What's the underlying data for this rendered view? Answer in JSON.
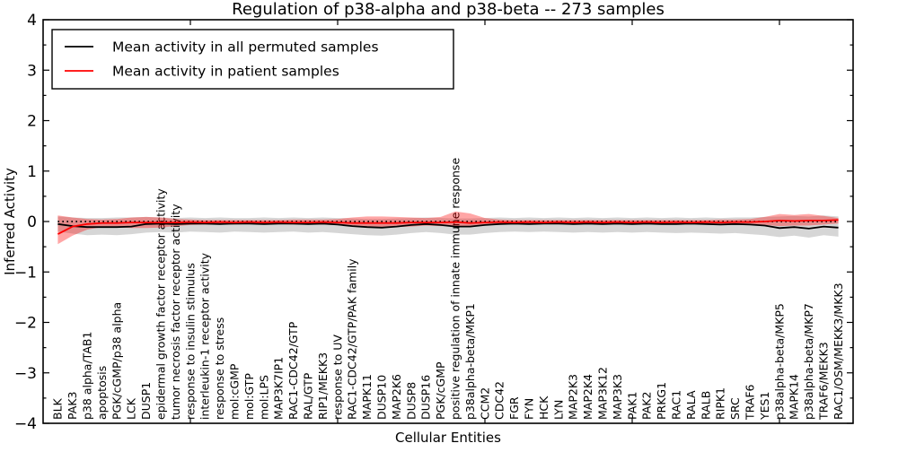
{
  "title": "Regulation of p38-alpha and p38-beta -- 273 samples",
  "colors": {
    "permuted_line": "#000000",
    "patient_line": "#ff0000",
    "permuted_band": "#000000",
    "patient_band": "#ff0000",
    "axis": "#000000",
    "background": "#ffffff"
  },
  "chart_data": {
    "type": "line",
    "title": "Regulation of p38-alpha and p38-beta -- 273 samples",
    "xlabel": "Cellular Entities",
    "ylabel": "Inferred Activity",
    "ylim": [
      -4,
      4
    ],
    "yticks": [
      -4,
      -3,
      -2,
      -1,
      0,
      1,
      2,
      3,
      4
    ],
    "y_minor_step": 0.5,
    "x_major_ticks": [
      10,
      20,
      30,
      40,
      50
    ],
    "xlim": [
      0,
      55
    ],
    "grid": false,
    "zero_line": {
      "y": 0,
      "style": "dotted",
      "color": "#000000"
    },
    "legend": {
      "position": "upper left",
      "entries": [
        {
          "label": "Mean activity in all permuted samples",
          "color": "#000000"
        },
        {
          "label": "Mean activity in patient samples",
          "color": "#ff0000"
        }
      ]
    },
    "categories": [
      "BLK",
      "PAK3",
      "p38 alpha/TAB1",
      "apoptosis",
      "PGK/cGMP/p38 alpha",
      "LCK",
      "DUSP1",
      "epidermal growth factor receptor activity",
      "tumor necrosis factor receptor activity",
      "response to insulin stimulus",
      "interleukin-1 receptor activity",
      "response to stress",
      "mol:cGMP",
      "mol:GTP",
      "mol:LPS",
      "MAP3K7IP1",
      "RAC1-CDC42/GTP",
      "RAL/GTP",
      "RIP1/MEKK3",
      "response to UV",
      "RAC1-CDC42/GTP/PAK family",
      "MAPK11",
      "DUSP10",
      "MAP2K6",
      "DUSP8",
      "DUSP16",
      "PGK/cGMP",
      "positive regulation of innate immune response",
      "p38alpha-beta/MKP1",
      "CCM2",
      "CDC42",
      "FGR",
      "FYN",
      "HCK",
      "LYN",
      "MAP2K3",
      "MAP2K4",
      "MAP3K12",
      "MAP3K3",
      "PAK1",
      "PAK2",
      "PRKG1",
      "RAC1",
      "RALA",
      "RALB",
      "RIPK1",
      "SRC",
      "TRAF6",
      "YES1",
      "p38alpha-beta/MKP5",
      "MAPK14",
      "p38alpha-beta/MKP7",
      "TRAF6/MEKK3",
      "RAC1/OSM/MEKK3/MKK3"
    ],
    "series": [
      {
        "name": "Mean activity in all permuted samples",
        "color": "#000000",
        "values": [
          -0.05,
          -0.09,
          -0.11,
          -0.11,
          -0.11,
          -0.1,
          -0.05,
          -0.04,
          -0.05,
          -0.04,
          -0.04,
          -0.05,
          -0.04,
          -0.04,
          -0.05,
          -0.04,
          -0.04,
          -0.05,
          -0.04,
          -0.06,
          -0.09,
          -0.11,
          -0.12,
          -0.1,
          -0.07,
          -0.05,
          -0.07,
          -0.1,
          -0.1,
          -0.07,
          -0.05,
          -0.04,
          -0.05,
          -0.04,
          -0.04,
          -0.05,
          -0.04,
          -0.05,
          -0.04,
          -0.05,
          -0.04,
          -0.05,
          -0.05,
          -0.04,
          -0.05,
          -0.06,
          -0.05,
          -0.06,
          -0.08,
          -0.13,
          -0.11,
          -0.14,
          -0.1,
          -0.12
        ],
        "band_upper": [
          0.1,
          0.08,
          0.07,
          0.07,
          0.08,
          0.08,
          0.09,
          0.08,
          0.07,
          0.08,
          0.07,
          0.08,
          0.07,
          0.07,
          0.08,
          0.07,
          0.08,
          0.07,
          0.08,
          0.07,
          0.06,
          0.05,
          0.05,
          0.06,
          0.07,
          0.08,
          0.07,
          0.06,
          0.06,
          0.07,
          0.08,
          0.07,
          0.08,
          0.07,
          0.08,
          0.07,
          0.08,
          0.07,
          0.08,
          0.07,
          0.08,
          0.07,
          0.08,
          0.07,
          0.08,
          0.07,
          0.08,
          0.08,
          0.09,
          0.1,
          0.11,
          0.1,
          0.12,
          0.1
        ],
        "band_lower": [
          -0.2,
          -0.24,
          -0.27,
          -0.26,
          -0.27,
          -0.25,
          -0.22,
          -0.21,
          -0.22,
          -0.2,
          -0.21,
          -0.22,
          -0.2,
          -0.21,
          -0.22,
          -0.21,
          -0.2,
          -0.22,
          -0.21,
          -0.23,
          -0.25,
          -0.27,
          -0.28,
          -0.26,
          -0.23,
          -0.21,
          -0.23,
          -0.26,
          -0.26,
          -0.23,
          -0.21,
          -0.2,
          -0.21,
          -0.2,
          -0.21,
          -0.22,
          -0.21,
          -0.22,
          -0.21,
          -0.22,
          -0.21,
          -0.22,
          -0.23,
          -0.22,
          -0.23,
          -0.24,
          -0.23,
          -0.25,
          -0.27,
          -0.31,
          -0.28,
          -0.32,
          -0.27,
          -0.3
        ],
        "band_opacity": 0.16
      },
      {
        "name": "Mean activity in patient samples",
        "color": "#ff0000",
        "values": [
          -0.25,
          -0.1,
          -0.05,
          -0.03,
          -0.03,
          -0.02,
          -0.02,
          -0.02,
          -0.02,
          -0.01,
          -0.02,
          -0.01,
          -0.02,
          -0.01,
          -0.02,
          -0.01,
          -0.02,
          -0.02,
          -0.01,
          -0.02,
          -0.03,
          -0.03,
          -0.03,
          -0.03,
          -0.02,
          -0.02,
          -0.02,
          -0.01,
          -0.03,
          -0.02,
          -0.01,
          -0.02,
          -0.01,
          -0.02,
          -0.01,
          -0.02,
          -0.01,
          -0.02,
          -0.01,
          -0.02,
          -0.01,
          -0.02,
          -0.01,
          -0.02,
          -0.01,
          -0.02,
          -0.01,
          -0.01,
          0.0,
          0.02,
          0.01,
          0.02,
          0.02,
          0.03
        ],
        "band_upper": [
          0.12,
          0.08,
          0.05,
          0.04,
          0.05,
          0.08,
          0.09,
          0.08,
          0.05,
          0.04,
          0.03,
          0.03,
          0.03,
          0.03,
          0.03,
          0.03,
          0.04,
          0.04,
          0.04,
          0.05,
          0.08,
          0.1,
          0.1,
          0.09,
          0.08,
          0.07,
          0.09,
          0.2,
          0.16,
          0.07,
          0.04,
          0.03,
          0.03,
          0.03,
          0.03,
          0.03,
          0.03,
          0.03,
          0.03,
          0.03,
          0.03,
          0.03,
          0.03,
          0.03,
          0.03,
          0.04,
          0.04,
          0.05,
          0.09,
          0.15,
          0.13,
          0.15,
          0.11,
          0.07
        ],
        "band_lower": [
          -0.45,
          -0.28,
          -0.16,
          -0.11,
          -0.11,
          -0.13,
          -0.13,
          -0.12,
          -0.09,
          -0.07,
          -0.06,
          -0.06,
          -0.06,
          -0.05,
          -0.06,
          -0.05,
          -0.06,
          -0.06,
          -0.06,
          -0.07,
          -0.1,
          -0.12,
          -0.12,
          -0.11,
          -0.1,
          -0.08,
          -0.09,
          -0.09,
          -0.11,
          -0.07,
          -0.05,
          -0.05,
          -0.05,
          -0.05,
          -0.05,
          -0.05,
          -0.05,
          -0.05,
          -0.05,
          -0.05,
          -0.05,
          -0.05,
          -0.05,
          -0.05,
          -0.05,
          -0.06,
          -0.06,
          -0.06,
          -0.07,
          -0.09,
          -0.08,
          -0.08,
          -0.06,
          -0.04
        ],
        "band_opacity": 0.35
      }
    ]
  }
}
